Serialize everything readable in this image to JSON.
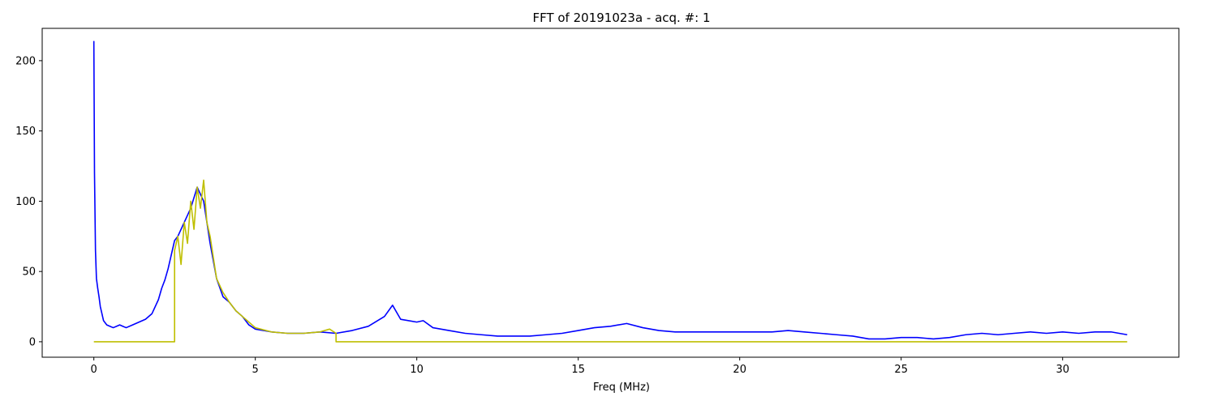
{
  "chart_data": {
    "type": "line",
    "title": "FFT of 20191023a - acq. #: 1",
    "xlabel": "Freq (MHz)",
    "ylabel": "",
    "xlim": [
      -1.6,
      33.6
    ],
    "ylim": [
      -11,
      223
    ],
    "x_ticks": [
      0,
      5,
      10,
      15,
      20,
      25,
      30
    ],
    "x_tick_labels": [
      "0",
      "5",
      "10",
      "15",
      "20",
      "25",
      "30"
    ],
    "y_ticks": [
      0,
      50,
      100,
      150,
      200
    ],
    "y_tick_labels": [
      "0",
      "50",
      "100",
      "150",
      "200"
    ],
    "grid": false,
    "legend": false,
    "colors": {
      "blue": "#0000ff",
      "yellow": "#bfbf00",
      "axes": "#000000"
    },
    "series": [
      {
        "color": "#0000ff",
        "x": [
          0,
          0.02,
          0.05,
          0.08,
          0.12,
          0.16,
          0.2,
          0.25,
          0.3,
          0.4,
          0.5,
          0.6,
          0.7,
          0.8,
          0.9,
          1.0,
          1.2,
          1.4,
          1.6,
          1.8,
          2.0,
          2.1,
          2.2,
          2.3,
          2.4,
          2.5,
          2.6,
          2.8,
          3.0,
          3.2,
          3.4,
          3.6,
          3.8,
          4.0,
          4.2,
          4.4,
          4.6,
          4.8,
          5.0,
          5.5,
          6.0,
          6.5,
          7.0,
          7.5,
          8.0,
          8.5,
          9.0,
          9.25,
          9.5,
          10.0,
          10.2,
          10.5,
          11.0,
          11.5,
          12.0,
          12.5,
          13.0,
          13.5,
          14.0,
          14.5,
          15.0,
          15.5,
          16.0,
          16.5,
          17.0,
          17.5,
          18.0,
          18.5,
          19.0,
          19.5,
          20.0,
          20.5,
          21.0,
          21.5,
          22.0,
          22.5,
          23.0,
          23.5,
          24.0,
          24.5,
          25.0,
          25.5,
          26.0,
          26.5,
          27.0,
          27.5,
          28.0,
          28.5,
          29.0,
          29.5,
          30.0,
          30.5,
          31.0,
          31.5,
          32.0
        ],
        "y": [
          214,
          120,
          65,
          45,
          38,
          32,
          25,
          20,
          15,
          12,
          11,
          10,
          11,
          12,
          11,
          10,
          12,
          14,
          16,
          20,
          30,
          38,
          44,
          52,
          62,
          72,
          75,
          85,
          95,
          110,
          100,
          70,
          45,
          32,
          28,
          22,
          18,
          12,
          9,
          7,
          6,
          6,
          7,
          6,
          8,
          11,
          18,
          26,
          16,
          14,
          15,
          10,
          8,
          6,
          5,
          4,
          4,
          4,
          5,
          6,
          8,
          10,
          11,
          13,
          10,
          8,
          7,
          7,
          7,
          7,
          7,
          7,
          7,
          8,
          7,
          6,
          5,
          4,
          2,
          2,
          3,
          3,
          2,
          3,
          5,
          6,
          5,
          6,
          7,
          6,
          7,
          6,
          7,
          7,
          5
        ]
      },
      {
        "color": "#bfbf00",
        "x": [
          0,
          1.7,
          1.7,
          2.5,
          2.5,
          2.6,
          2.7,
          2.8,
          2.9,
          3.0,
          3.1,
          3.2,
          3.3,
          3.4,
          3.5,
          3.6,
          3.7,
          3.8,
          4.0,
          4.2,
          4.4,
          4.6,
          4.8,
          5.0,
          5.5,
          6.0,
          6.5,
          7.0,
          7.3,
          7.5,
          7.5,
          32.0
        ],
        "y": [
          0,
          0,
          0,
          0,
          65,
          75,
          55,
          85,
          70,
          100,
          80,
          110,
          95,
          115,
          85,
          75,
          60,
          45,
          35,
          28,
          22,
          18,
          14,
          10,
          7,
          6,
          6,
          7,
          9,
          6,
          0,
          0
        ]
      }
    ]
  }
}
